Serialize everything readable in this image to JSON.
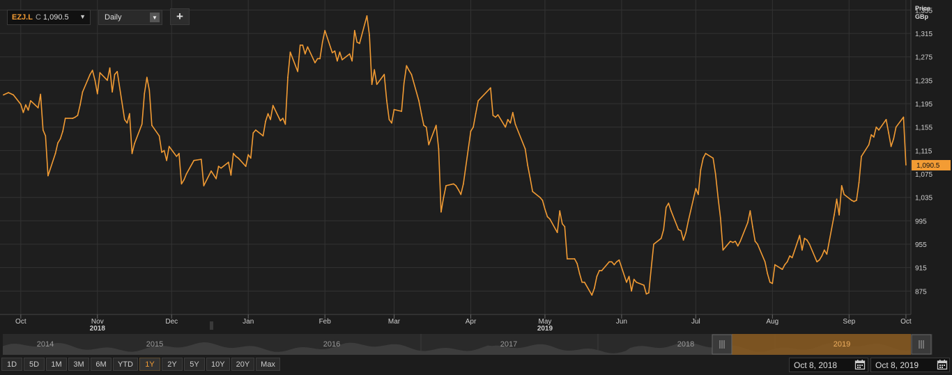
{
  "toolbar": {
    "ticker": "EZJ.L",
    "close_prefix": "C",
    "close_value": "1,090.5",
    "interval": "Daily",
    "add_label": "+"
  },
  "axis_header": {
    "line1": "Price",
    "line2": "GBp"
  },
  "range_buttons": [
    "1D",
    "5D",
    "1M",
    "3M",
    "6M",
    "YTD",
    "1Y",
    "2Y",
    "5Y",
    "10Y",
    "20Y",
    "Max"
  ],
  "active_range": "1Y",
  "date_range": {
    "start": "Oct 8, 2018",
    "end": "Oct 8, 2019"
  },
  "navigator": {
    "years": [
      "2014",
      "2015",
      "2016",
      "2017",
      "2018",
      "2019"
    ]
  },
  "colors": {
    "line": "#f39c34",
    "background": "#1c1c1c",
    "grid": "#333333"
  },
  "chart_data": {
    "type": "line",
    "ylabel": "Price GBp",
    "ylim": [
      835,
      1365
    ],
    "yticks": [
      875,
      915,
      955,
      995,
      1035,
      1075,
      1115,
      1155,
      1195,
      1235,
      1275,
      1315,
      1355
    ],
    "ytick_labels": [
      "875",
      "915",
      "955",
      "995",
      "1,035",
      "1,075",
      "1,115",
      "1,155",
      "1,195",
      "1,235",
      "1,275",
      "1,315",
      "1,355"
    ],
    "last_value": 1090.5,
    "last_label": "1,090.5",
    "xlim": [
      "2018-10-08",
      "2019-10-10"
    ],
    "month_ticks": [
      {
        "date": "2018-10-15",
        "label": "Oct"
      },
      {
        "date": "2018-11-15",
        "label": "Nov"
      },
      {
        "date": "2018-12-15",
        "label": "Dec"
      },
      {
        "date": "2019-01-15",
        "label": "Jan"
      },
      {
        "date": "2019-02-15",
        "label": "Feb"
      },
      {
        "date": "2019-03-15",
        "label": "Mar"
      },
      {
        "date": "2019-04-15",
        "label": "Apr"
      },
      {
        "date": "2019-05-15",
        "label": "May"
      },
      {
        "date": "2019-06-15",
        "label": "Jun"
      },
      {
        "date": "2019-07-15",
        "label": "Jul"
      },
      {
        "date": "2019-08-15",
        "label": "Aug"
      },
      {
        "date": "2019-09-15",
        "label": "Sep"
      },
      {
        "date": "2019-10-08",
        "label": "Oct"
      }
    ],
    "year_ticks": [
      {
        "date": "2018-11-15",
        "label": "2018"
      },
      {
        "date": "2019-05-15",
        "label": "2019"
      }
    ],
    "series": [
      {
        "values": [
          [
            "2018-10-08",
            1210
          ],
          [
            "2018-10-10",
            1214
          ],
          [
            "2018-10-12",
            1210
          ],
          [
            "2018-10-15",
            1194
          ],
          [
            "2018-10-16",
            1180
          ],
          [
            "2018-10-17",
            1193
          ],
          [
            "2018-10-18",
            1184
          ],
          [
            "2018-10-19",
            1200
          ],
          [
            "2018-10-22",
            1188
          ],
          [
            "2018-10-23",
            1211
          ],
          [
            "2018-10-24",
            1150
          ],
          [
            "2018-10-25",
            1140
          ],
          [
            "2018-10-26",
            1072
          ],
          [
            "2018-10-29",
            1110
          ],
          [
            "2018-10-30",
            1128
          ],
          [
            "2018-10-31",
            1135
          ],
          [
            "2018-11-01",
            1148
          ],
          [
            "2018-11-02",
            1170
          ],
          [
            "2018-11-05",
            1170
          ],
          [
            "2018-11-06",
            1172
          ],
          [
            "2018-11-07",
            1175
          ],
          [
            "2018-11-08",
            1193
          ],
          [
            "2018-11-09",
            1215
          ],
          [
            "2018-11-12",
            1245
          ],
          [
            "2018-11-13",
            1252
          ],
          [
            "2018-11-14",
            1235
          ],
          [
            "2018-11-15",
            1212
          ],
          [
            "2018-11-16",
            1248
          ],
          [
            "2018-11-19",
            1235
          ],
          [
            "2018-11-20",
            1256
          ],
          [
            "2018-11-21",
            1215
          ],
          [
            "2018-11-22",
            1245
          ],
          [
            "2018-11-23",
            1250
          ],
          [
            "2018-11-26",
            1168
          ],
          [
            "2018-11-27",
            1162
          ],
          [
            "2018-11-28",
            1178
          ],
          [
            "2018-11-29",
            1110
          ],
          [
            "2018-11-30",
            1127
          ],
          [
            "2018-12-03",
            1160
          ],
          [
            "2018-12-04",
            1212
          ],
          [
            "2018-12-05",
            1240
          ],
          [
            "2018-12-06",
            1218
          ],
          [
            "2018-12-07",
            1158
          ],
          [
            "2018-12-10",
            1140
          ],
          [
            "2018-12-11",
            1112
          ],
          [
            "2018-12-12",
            1115
          ],
          [
            "2018-12-13",
            1098
          ],
          [
            "2018-12-14",
            1122
          ],
          [
            "2018-12-17",
            1105
          ],
          [
            "2018-12-18",
            1110
          ],
          [
            "2018-12-19",
            1058
          ],
          [
            "2018-12-20",
            1065
          ],
          [
            "2018-12-21",
            1075
          ],
          [
            "2018-12-24",
            1098
          ],
          [
            "2018-12-27",
            1100
          ],
          [
            "2018-12-28",
            1055
          ],
          [
            "2018-12-31",
            1080
          ],
          [
            "2019-01-02",
            1067
          ],
          [
            "2019-01-03",
            1088
          ],
          [
            "2019-01-04",
            1085
          ],
          [
            "2019-01-07",
            1095
          ],
          [
            "2019-01-08",
            1073
          ],
          [
            "2019-01-09",
            1110
          ],
          [
            "2019-01-10",
            1105
          ],
          [
            "2019-01-11",
            1102
          ],
          [
            "2019-01-14",
            1088
          ],
          [
            "2019-01-15",
            1108
          ],
          [
            "2019-01-16",
            1102
          ],
          [
            "2019-01-17",
            1145
          ],
          [
            "2019-01-18",
            1150
          ],
          [
            "2019-01-21",
            1140
          ],
          [
            "2019-01-22",
            1165
          ],
          [
            "2019-01-23",
            1178
          ],
          [
            "2019-01-24",
            1168
          ],
          [
            "2019-01-25",
            1192
          ],
          [
            "2019-01-28",
            1166
          ],
          [
            "2019-01-29",
            1170
          ],
          [
            "2019-01-30",
            1160
          ],
          [
            "2019-01-31",
            1240
          ],
          [
            "2019-02-01",
            1283
          ],
          [
            "2019-02-04",
            1250
          ],
          [
            "2019-02-05",
            1295
          ],
          [
            "2019-02-06",
            1295
          ],
          [
            "2019-02-07",
            1280
          ],
          [
            "2019-02-08",
            1292
          ],
          [
            "2019-02-11",
            1265
          ],
          [
            "2019-02-12",
            1272
          ],
          [
            "2019-02-13",
            1272
          ],
          [
            "2019-02-14",
            1300
          ],
          [
            "2019-02-15",
            1320
          ],
          [
            "2019-02-18",
            1282
          ],
          [
            "2019-02-19",
            1285
          ],
          [
            "2019-02-20",
            1268
          ],
          [
            "2019-02-21",
            1283
          ],
          [
            "2019-02-22",
            1270
          ],
          [
            "2019-02-25",
            1280
          ],
          [
            "2019-02-26",
            1268
          ],
          [
            "2019-02-27",
            1320
          ],
          [
            "2019-02-28",
            1300
          ],
          [
            "2019-03-01",
            1298
          ],
          [
            "2019-03-04",
            1345
          ],
          [
            "2019-03-05",
            1312
          ],
          [
            "2019-03-06",
            1228
          ],
          [
            "2019-03-07",
            1253
          ],
          [
            "2019-03-08",
            1228
          ],
          [
            "2019-03-11",
            1245
          ],
          [
            "2019-03-12",
            1200
          ],
          [
            "2019-03-13",
            1168
          ],
          [
            "2019-03-14",
            1162
          ],
          [
            "2019-03-15",
            1185
          ],
          [
            "2019-03-18",
            1182
          ],
          [
            "2019-03-19",
            1230
          ],
          [
            "2019-03-20",
            1260
          ],
          [
            "2019-03-21",
            1252
          ],
          [
            "2019-03-22",
            1245
          ],
          [
            "2019-03-25",
            1200
          ],
          [
            "2019-03-26",
            1178
          ],
          [
            "2019-03-27",
            1158
          ],
          [
            "2019-03-28",
            1155
          ],
          [
            "2019-03-29",
            1125
          ],
          [
            "2019-04-01",
            1158
          ],
          [
            "2019-04-02",
            1118
          ],
          [
            "2019-04-03",
            1010
          ],
          [
            "2019-04-04",
            1035
          ],
          [
            "2019-04-05",
            1055
          ],
          [
            "2019-04-08",
            1058
          ],
          [
            "2019-04-09",
            1055
          ],
          [
            "2019-04-10",
            1048
          ],
          [
            "2019-04-11",
            1040
          ],
          [
            "2019-04-12",
            1058
          ],
          [
            "2019-04-15",
            1148
          ],
          [
            "2019-04-16",
            1155
          ],
          [
            "2019-04-17",
            1178
          ],
          [
            "2019-04-18",
            1200
          ],
          [
            "2019-04-23",
            1222
          ],
          [
            "2019-04-24",
            1175
          ],
          [
            "2019-04-25",
            1172
          ],
          [
            "2019-04-26",
            1176
          ],
          [
            "2019-04-29",
            1155
          ],
          [
            "2019-04-30",
            1168
          ],
          [
            "2019-05-01",
            1162
          ],
          [
            "2019-05-02",
            1180
          ],
          [
            "2019-05-03",
            1160
          ],
          [
            "2019-05-07",
            1118
          ],
          [
            "2019-05-08",
            1090
          ],
          [
            "2019-05-09",
            1068
          ],
          [
            "2019-05-10",
            1045
          ],
          [
            "2019-05-13",
            1035
          ],
          [
            "2019-05-14",
            1030
          ],
          [
            "2019-05-15",
            1015
          ],
          [
            "2019-05-16",
            1002
          ],
          [
            "2019-05-17",
            998
          ],
          [
            "2019-05-20",
            975
          ],
          [
            "2019-05-21",
            1012
          ],
          [
            "2019-05-22",
            990
          ],
          [
            "2019-05-23",
            985
          ],
          [
            "2019-05-24",
            930
          ],
          [
            "2019-05-27",
            930
          ],
          [
            "2019-05-28",
            922
          ],
          [
            "2019-05-29",
            905
          ],
          [
            "2019-05-30",
            890
          ],
          [
            "2019-05-31",
            890
          ],
          [
            "2019-06-03",
            868
          ],
          [
            "2019-06-04",
            880
          ],
          [
            "2019-06-05",
            900
          ],
          [
            "2019-06-06",
            910
          ],
          [
            "2019-06-07",
            910
          ],
          [
            "2019-06-10",
            925
          ],
          [
            "2019-06-11",
            925
          ],
          [
            "2019-06-12",
            920
          ],
          [
            "2019-06-13",
            925
          ],
          [
            "2019-06-14",
            928
          ],
          [
            "2019-06-17",
            890
          ],
          [
            "2019-06-18",
            900
          ],
          [
            "2019-06-19",
            875
          ],
          [
            "2019-06-20",
            895
          ],
          [
            "2019-06-21",
            890
          ],
          [
            "2019-06-24",
            885
          ],
          [
            "2019-06-25",
            870
          ],
          [
            "2019-06-26",
            872
          ],
          [
            "2019-06-27",
            915
          ],
          [
            "2019-06-28",
            955
          ],
          [
            "2019-07-01",
            965
          ],
          [
            "2019-07-02",
            980
          ],
          [
            "2019-07-03",
            1018
          ],
          [
            "2019-07-04",
            1025
          ],
          [
            "2019-07-05",
            1012
          ],
          [
            "2019-07-08",
            980
          ],
          [
            "2019-07-09",
            978
          ],
          [
            "2019-07-10",
            962
          ],
          [
            "2019-07-11",
            975
          ],
          [
            "2019-07-12",
            995
          ],
          [
            "2019-07-15",
            1050
          ],
          [
            "2019-07-16",
            1040
          ],
          [
            "2019-07-17",
            1082
          ],
          [
            "2019-07-18",
            1102
          ],
          [
            "2019-07-19",
            1110
          ],
          [
            "2019-07-22",
            1102
          ],
          [
            "2019-07-23",
            1075
          ],
          [
            "2019-07-24",
            1035
          ],
          [
            "2019-07-25",
            1000
          ],
          [
            "2019-07-26",
            945
          ],
          [
            "2019-07-29",
            960
          ],
          [
            "2019-07-30",
            958
          ],
          [
            "2019-07-31",
            960
          ],
          [
            "2019-08-01",
            952
          ],
          [
            "2019-08-02",
            960
          ],
          [
            "2019-08-05",
            992
          ],
          [
            "2019-08-06",
            1012
          ],
          [
            "2019-08-07",
            985
          ],
          [
            "2019-08-08",
            960
          ],
          [
            "2019-08-09",
            955
          ],
          [
            "2019-08-12",
            925
          ],
          [
            "2019-08-13",
            905
          ],
          [
            "2019-08-14",
            890
          ],
          [
            "2019-08-15",
            888
          ],
          [
            "2019-08-16",
            920
          ],
          [
            "2019-08-19",
            912
          ],
          [
            "2019-08-20",
            920
          ],
          [
            "2019-08-21",
            925
          ],
          [
            "2019-08-22",
            935
          ],
          [
            "2019-08-23",
            932
          ],
          [
            "2019-08-26",
            970
          ],
          [
            "2019-08-27",
            945
          ],
          [
            "2019-08-28",
            965
          ],
          [
            "2019-08-29",
            962
          ],
          [
            "2019-08-30",
            955
          ],
          [
            "2019-09-02",
            925
          ],
          [
            "2019-09-03",
            928
          ],
          [
            "2019-09-04",
            935
          ],
          [
            "2019-09-05",
            945
          ],
          [
            "2019-09-06",
            938
          ],
          [
            "2019-09-09",
            1005
          ],
          [
            "2019-09-10",
            1032
          ],
          [
            "2019-09-11",
            1005
          ],
          [
            "2019-09-12",
            1055
          ],
          [
            "2019-09-13",
            1040
          ],
          [
            "2019-09-16",
            1030
          ],
          [
            "2019-09-17",
            1028
          ],
          [
            "2019-09-18",
            1030
          ],
          [
            "2019-09-19",
            1060
          ],
          [
            "2019-09-20",
            1105
          ],
          [
            "2019-09-23",
            1125
          ],
          [
            "2019-09-24",
            1142
          ],
          [
            "2019-09-25",
            1138
          ],
          [
            "2019-09-26",
            1155
          ],
          [
            "2019-09-27",
            1150
          ],
          [
            "2019-09-30",
            1168
          ],
          [
            "2019-10-01",
            1145
          ],
          [
            "2019-10-02",
            1122
          ],
          [
            "2019-10-03",
            1135
          ],
          [
            "2019-10-04",
            1155
          ],
          [
            "2019-10-07",
            1172
          ],
          [
            "2019-10-08",
            1090.5
          ]
        ]
      }
    ]
  }
}
